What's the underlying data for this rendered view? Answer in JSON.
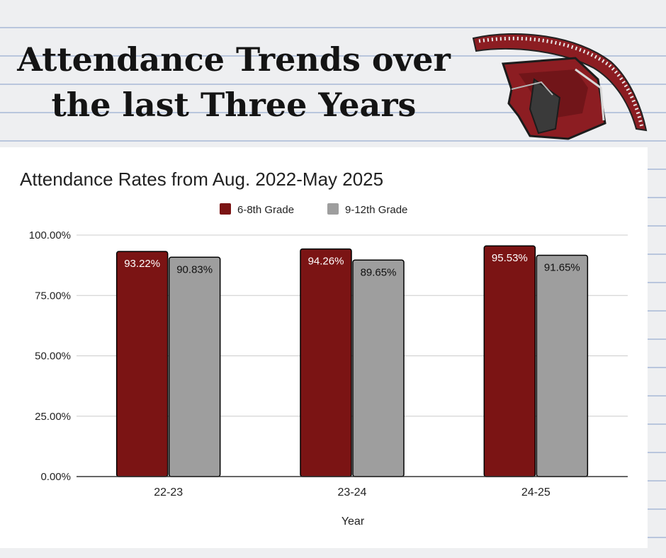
{
  "poster": {
    "headline_line1": "Attendance Trends over",
    "headline_line2": "the last Three Years",
    "mascot_icon": "spartan-helmet-icon"
  },
  "colors": {
    "series_6_8": "#7b1414",
    "series_9_12": "#9e9e9e",
    "notebook_lines": "#b9c6dd",
    "gridline": "#cccccc"
  },
  "chart_data": {
    "type": "bar",
    "title": "Attendance Rates from Aug. 2022-May 2025",
    "xlabel": "Year",
    "ylabel": "",
    "categories": [
      "22-23",
      "23-24",
      "24-25"
    ],
    "series": [
      {
        "name": "6-8th Grade",
        "values": [
          93.22,
          94.26,
          95.53
        ],
        "labels": [
          "93.22%",
          "94.26%",
          "95.53%"
        ]
      },
      {
        "name": "9-12th Grade",
        "values": [
          90.83,
          89.65,
          91.65
        ],
        "labels": [
          "90.83%",
          "89.65%",
          "91.65%"
        ]
      }
    ],
    "ylim": [
      0,
      100
    ],
    "yticks": [
      "0.00%",
      "25.00%",
      "50.00%",
      "75.00%",
      "100.00%"
    ],
    "grid": true,
    "legend": "top-center",
    "data_labels": "inside-top"
  }
}
